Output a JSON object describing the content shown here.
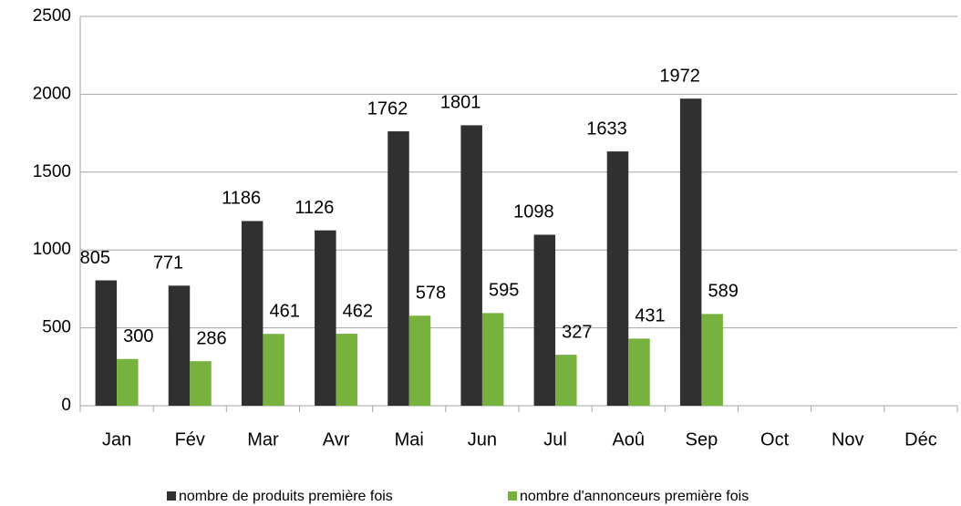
{
  "chart_data": {
    "type": "bar",
    "categories": [
      "Jan",
      "Fév",
      "Mar",
      "Avr",
      "Mai",
      "Jun",
      "Jul",
      "Aoû",
      "Sep",
      "Oct",
      "Nov",
      "Déc"
    ],
    "series": [
      {
        "name": "nombre de produits première fois",
        "color": "#303030",
        "values": [
          805,
          771,
          1186,
          1126,
          1762,
          1801,
          1098,
          1633,
          1972,
          null,
          null,
          null
        ]
      },
      {
        "name": "nombre d'annonceurs première fois",
        "color": "#77b23e",
        "values": [
          300,
          286,
          461,
          462,
          578,
          595,
          327,
          431,
          589,
          null,
          null,
          null
        ]
      }
    ],
    "ylim": [
      0,
      2500
    ],
    "yticks": [
      0,
      500,
      1000,
      1500,
      2000,
      2500
    ],
    "grid": true,
    "legend": "bottom"
  }
}
